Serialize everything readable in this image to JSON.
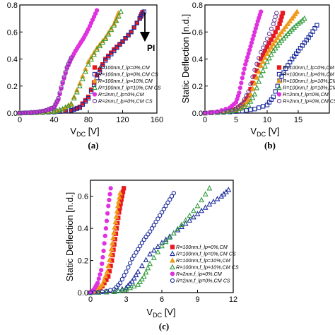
{
  "chart_data": [
    {
      "id": "a",
      "type": "scatter",
      "caption": "(a)",
      "xlabel_main": "V",
      "xlabel_sub": "DC",
      "xlabel_unit": " [V]",
      "ylabel": "",
      "xlim": [
        0,
        160
      ],
      "ylim": [
        0,
        0.8
      ],
      "xticks": [
        "0",
        "40",
        "80",
        "120",
        "160"
      ],
      "yticks": [
        "0.0",
        "0.2",
        "0.4",
        "0.6",
        "0.8"
      ],
      "annotation": "PI",
      "series": [
        {
          "name": "R=100nm,f_lp=0%,CM",
          "color": "#e8191f",
          "marker": "square-filled",
          "x": [
            0,
            20,
            40,
            60,
            70,
            80,
            90,
            100,
            110,
            120,
            130,
            140,
            143
          ],
          "y": [
            0,
            0.003,
            0.008,
            0.02,
            0.045,
            0.12,
            0.28,
            0.4,
            0.47,
            0.53,
            0.6,
            0.7,
            0.745
          ]
        },
        {
          "name": "R=100nm,f_lp=0%,CM CS",
          "color": "#1a2a9c",
          "marker": "square-open",
          "x": [
            0,
            20,
            40,
            60,
            70,
            80,
            90,
            100,
            110,
            120,
            130,
            140,
            145
          ],
          "y": [
            0,
            0.003,
            0.008,
            0.02,
            0.04,
            0.11,
            0.26,
            0.39,
            0.46,
            0.53,
            0.6,
            0.7,
            0.75
          ]
        },
        {
          "name": "R=100nm,f_lp=10%,CM",
          "color": "#f09a1a",
          "marker": "triangle-filled",
          "x": [
            0,
            20,
            40,
            50,
            60,
            70,
            80,
            90,
            100,
            110,
            115
          ],
          "y": [
            0,
            0.004,
            0.012,
            0.03,
            0.07,
            0.22,
            0.38,
            0.48,
            0.56,
            0.66,
            0.74
          ]
        },
        {
          "name": "R=100nm,f_lp=10%,CM CS",
          "color": "#2e9a3a",
          "marker": "triangle-open",
          "x": [
            0,
            20,
            40,
            50,
            60,
            70,
            80,
            90,
            100,
            110,
            118
          ],
          "y": [
            0,
            0.004,
            0.012,
            0.03,
            0.065,
            0.2,
            0.36,
            0.47,
            0.55,
            0.65,
            0.75
          ]
        },
        {
          "name": "R=2nm,f_lp=0%,CM",
          "color": "#e030e0",
          "marker": "circle-filled",
          "x": [
            0,
            10,
            20,
            30,
            40,
            45,
            50,
            55,
            60,
            65,
            70,
            75,
            80,
            85,
            90
          ],
          "y": [
            0,
            0.003,
            0.008,
            0.018,
            0.04,
            0.1,
            0.22,
            0.33,
            0.4,
            0.46,
            0.51,
            0.56,
            0.62,
            0.69,
            0.76
          ]
        },
        {
          "name": "R=2nm,f_lp=0%,CM CS",
          "color": "#6b3d9a",
          "marker": "circle-open",
          "x": [
            0,
            10,
            20,
            30,
            40,
            45,
            50,
            55,
            60
          ],
          "y": [
            0,
            0.003,
            0.008,
            0.02,
            0.045,
            0.11,
            0.23,
            0.34,
            0.41
          ]
        }
      ]
    },
    {
      "id": "b",
      "type": "scatter",
      "caption": "(b)",
      "xlabel_main": "V",
      "xlabel_sub": "DC",
      "xlabel_unit": " [V]",
      "ylabel": "Static Deflection [n.d.]",
      "xlim": [
        0,
        20
      ],
      "ylim": [
        0,
        0.8
      ],
      "xticks": [
        "0",
        "5",
        "10",
        "15"
      ],
      "yticks": [
        "0.0",
        "0.2",
        "0.4",
        "0.6",
        "0.8"
      ],
      "series": [
        {
          "name": "R=100nm,f_lp=0%,CM",
          "color": "#e8191f",
          "marker": "square-filled",
          "x": [
            0,
            3,
            5,
            6,
            7,
            8,
            9,
            10,
            11,
            12,
            12.5
          ],
          "y": [
            0,
            0.01,
            0.03,
            0.06,
            0.13,
            0.27,
            0.4,
            0.49,
            0.57,
            0.66,
            0.74
          ]
        },
        {
          "name": "R=100nm,f_lp=0%,CM CS",
          "color": "#1a2a9c",
          "marker": "square-open",
          "x": [
            0,
            3,
            6,
            8,
            10,
            11,
            12,
            13,
            14,
            15,
            16,
            17,
            18
          ],
          "y": [
            0,
            0.005,
            0.015,
            0.03,
            0.06,
            0.12,
            0.24,
            0.33,
            0.4,
            0.46,
            0.52,
            0.58,
            0.65
          ]
        },
        {
          "name": "R=100nm,f_lp=10%,CM",
          "color": "#f09a1a",
          "marker": "triangle-filled",
          "x": [
            0,
            3,
            5,
            6,
            7,
            8,
            9,
            10,
            11,
            12,
            13,
            14,
            14.8
          ],
          "y": [
            0,
            0.008,
            0.025,
            0.05,
            0.1,
            0.22,
            0.35,
            0.44,
            0.51,
            0.58,
            0.64,
            0.7,
            0.75
          ]
        },
        {
          "name": "R=100nm,f_lp=10%,CM CS",
          "color": "#2e9a3a",
          "marker": "triangle-open",
          "x": [
            0,
            3,
            5,
            7,
            8,
            9,
            10,
            11,
            12,
            13,
            14,
            15,
            16
          ],
          "y": [
            0,
            0.007,
            0.02,
            0.06,
            0.14,
            0.28,
            0.38,
            0.46,
            0.52,
            0.57,
            0.62,
            0.66,
            0.7
          ]
        },
        {
          "name": "R=2nm,f_lp=0%,CM",
          "color": "#e030e0",
          "marker": "circle-filled",
          "x": [
            0,
            2,
            4,
            5,
            5.5,
            6,
            6.5,
            7,
            7.5,
            8,
            8.5,
            9
          ],
          "y": [
            0,
            0.01,
            0.04,
            0.08,
            0.15,
            0.26,
            0.36,
            0.44,
            0.52,
            0.6,
            0.68,
            0.75
          ]
        },
        {
          "name": "R=2nm,f_lp=0%,CM CS",
          "color": "#6b3d9a",
          "marker": "circle-open",
          "x": [
            0,
            3,
            5,
            6,
            7,
            8,
            9,
            10,
            11,
            11.5
          ],
          "y": [
            0,
            0.01,
            0.03,
            0.07,
            0.16,
            0.32,
            0.45,
            0.55,
            0.66,
            0.74
          ]
        }
      ]
    },
    {
      "id": "c",
      "type": "scatter",
      "caption": "(c)",
      "xlabel_main": "V",
      "xlabel_sub": "DC",
      "xlabel_unit": " [V]",
      "ylabel": "Static Deflection [n.d.]",
      "xlim": [
        0,
        12
      ],
      "ylim": [
        0,
        0.7
      ],
      "xticks": [
        "0",
        "3",
        "6",
        "9",
        "12"
      ],
      "yticks": [
        "0.0",
        "0.2",
        "0.4",
        "0.6"
      ],
      "series": [
        {
          "name": "R=100nm,f_lp=0%,CM",
          "color": "#e8191f",
          "marker": "square-filled",
          "x": [
            0,
            0.5,
            1.0,
            1.5,
            1.8,
            2.0,
            2.2,
            2.4,
            2.6,
            2.8
          ],
          "y": [
            0,
            0.01,
            0.04,
            0.1,
            0.2,
            0.3,
            0.4,
            0.5,
            0.58,
            0.65
          ]
        },
        {
          "name": "R=100nm,f_lp=0%,CM CS",
          "color": "#1a2a9c",
          "marker": "triangle-open",
          "x": [
            0,
            2,
            3,
            3.5,
            4,
            5,
            6,
            7,
            8,
            9,
            10,
            11,
            11.6
          ],
          "y": [
            0,
            0.005,
            0.03,
            0.07,
            0.13,
            0.24,
            0.31,
            0.37,
            0.43,
            0.49,
            0.55,
            0.6,
            0.64
          ]
        },
        {
          "name": "R=100nm,f_lp=10%,CM",
          "color": "#f09a1a",
          "marker": "triangle-filled",
          "x": [
            0,
            0.5,
            1.0,
            1.4,
            1.7,
            1.9,
            2.1,
            2.3,
            2.5
          ],
          "y": [
            0,
            0.01,
            0.05,
            0.13,
            0.24,
            0.34,
            0.44,
            0.54,
            0.62
          ]
        },
        {
          "name": "R=100nm,f_lp=10%,CM CS",
          "color": "#2e9a3a",
          "marker": "triangle-open",
          "x": [
            0,
            2,
            3,
            4,
            4.5,
            5,
            6,
            7,
            8,
            9,
            10
          ],
          "y": [
            0,
            0.005,
            0.02,
            0.05,
            0.1,
            0.18,
            0.29,
            0.37,
            0.45,
            0.54,
            0.65
          ]
        },
        {
          "name": "R=2nm,f_lp=0%,CM",
          "color": "#e030e0",
          "marker": "circle-filled",
          "x": [
            0,
            0.3,
            0.6,
            0.9,
            1.1,
            1.3,
            1.5,
            1.7
          ],
          "y": [
            0,
            0.02,
            0.06,
            0.14,
            0.26,
            0.4,
            0.54,
            0.65
          ]
        },
        {
          "name": "R=2nm,f_lp=0%,CM CS",
          "color": "#1a2a9c",
          "marker": "circle-open",
          "x": [
            0,
            1,
            2,
            2.5,
            3,
            3.5,
            4,
            4.5,
            5,
            5.5,
            6,
            6.5,
            7
          ],
          "y": [
            0,
            0.005,
            0.02,
            0.06,
            0.13,
            0.21,
            0.27,
            0.33,
            0.38,
            0.44,
            0.5,
            0.56,
            0.62
          ]
        }
      ]
    }
  ]
}
